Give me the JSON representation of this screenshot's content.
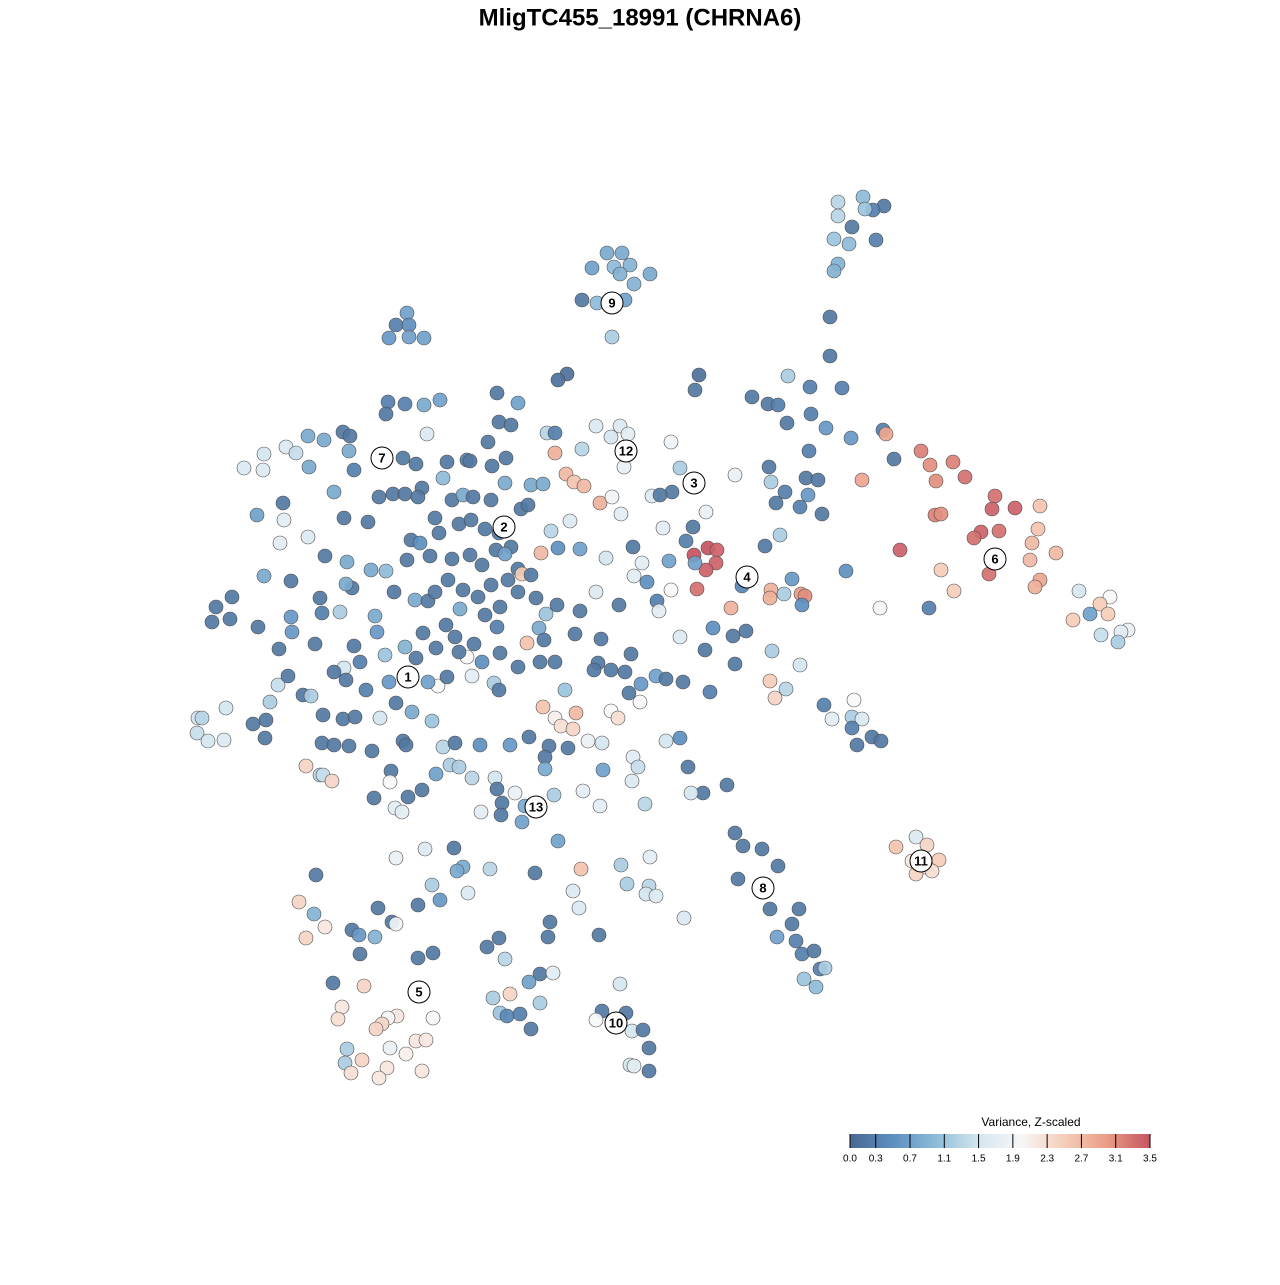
{
  "chart_data": {
    "type": "scatter",
    "title": "MligTC455_18991 (CHRNA6)",
    "xlim": [
      0,
      1280
    ],
    "ylim": [
      1280,
      0
    ],
    "x": [
      607,
      622,
      614,
      630,
      592,
      650,
      620,
      634,
      582,
      597,
      612,
      625,
      612,
      863,
      838,
      884,
      873,
      865,
      838,
      852,
      834,
      849,
      876,
      838,
      834,
      830,
      830,
      407,
      396,
      409,
      389,
      409,
      424,
      567,
      558,
      699,
      695,
      788,
      810,
      842,
      752,
      768,
      778,
      811,
      787,
      826,
      851,
      883,
      886,
      809,
      894,
      921,
      930,
      953,
      965,
      936,
      862,
      995,
      1015,
      1040,
      992,
      935,
      941,
      981,
      999,
      974,
      1038,
      1032,
      1056,
      900,
      1030,
      989,
      941,
      1040,
      1035,
      954,
      1079,
      1110,
      1100,
      1108,
      1073,
      1090,
      1128,
      1121,
      1101,
      1118,
      880,
      929,
      694,
      708,
      717,
      716,
      706,
      697,
      695,
      771,
      770,
      784,
      801,
      805,
      792,
      802,
      731,
      742,
      765,
      780,
      769,
      771,
      785,
      806,
      818,
      808,
      822,
      800,
      776,
      846,
      733,
      746,
      772,
      800,
      735,
      710,
      770,
      786,
      775,
      824,
      854,
      832,
      852,
      862,
      852,
      872,
      857,
      881,
      735,
      743,
      762,
      778,
      738,
      770,
      799,
      792,
      777,
      796,
      802,
      814,
      820,
      825,
      804,
      816,
      727,
      703,
      691,
      688,
      896,
      916,
      927,
      912,
      939,
      925,
      916,
      932,
      596,
      620,
      611,
      628,
      582,
      547,
      555,
      555,
      566,
      574,
      584,
      624,
      600,
      612,
      621,
      671,
      680,
      672,
      652,
      660,
      706,
      735,
      663,
      693,
      686,
      570,
      551,
      541,
      558,
      580,
      606,
      633,
      642,
      634,
      647,
      669,
      671,
      657,
      659,
      680,
      713,
      705,
      264,
      244,
      263,
      286,
      308,
      324,
      343,
      350,
      349,
      296,
      309,
      354,
      334,
      283,
      257,
      284,
      280,
      308,
      344,
      368,
      325,
      347,
      371,
      386,
      352,
      346,
      264,
      291,
      216,
      232,
      212,
      230,
      258,
      291,
      322,
      320,
      340,
      375,
      377,
      354,
      279,
      292,
      315,
      344,
      334,
      360,
      385,
      405,
      423,
      278,
      288,
      303,
      311,
      270,
      198,
      202,
      197,
      208,
      224,
      226,
      253,
      265,
      266,
      323,
      343,
      355,
      380,
      396,
      412,
      432,
      346,
      366,
      389,
      406,
      438,
      428,
      447,
      472,
      494,
      499,
      467,
      459,
      482,
      500,
      518,
      540,
      555,
      565,
      543,
      555,
      561,
      573,
      576,
      588,
      602,
      611,
      618,
      640,
      629,
      641,
      656,
      666,
      683,
      322,
      334,
      349,
      372,
      403,
      406,
      443,
      455,
      480,
      510,
      529,
      549,
      545,
      545,
      568,
      603,
      633,
      638,
      632,
      645,
      666,
      680,
      306,
      320,
      323,
      332,
      391,
      390,
      374,
      395,
      402,
      408,
      422,
      436,
      450,
      459,
      472,
      495,
      497,
      502,
      515,
      525,
      481,
      501,
      522,
      554,
      583,
      600,
      388,
      405,
      424,
      440,
      386,
      497,
      518,
      499,
      511,
      488,
      427,
      403,
      416,
      443,
      447,
      467,
      470,
      492,
      506,
      379,
      393,
      405,
      422,
      418,
      452,
      463,
      473,
      491,
      505,
      531,
      543,
      521,
      528,
      435,
      459,
      471,
      485,
      499,
      511,
      518,
      522,
      531,
      411,
      420,
      439,
      452,
      470,
      482,
      496,
      505,
      430,
      407,
      394,
      415,
      428,
      435,
      448,
      463,
      478,
      491,
      508,
      518,
      536,
      546,
      557,
      580,
      596,
      619,
      500,
      485,
      460,
      446,
      436,
      416,
      455,
      474,
      497,
      527,
      539,
      544,
      575,
      601,
      598,
      611,
      631,
      625,
      594,
      558,
      454,
      425,
      396,
      463,
      457,
      490,
      535,
      581,
      621,
      650,
      316,
      432,
      468,
      440,
      418,
      573,
      627,
      649,
      646,
      656,
      579,
      684,
      299,
      314,
      378,
      392,
      396,
      325,
      352,
      359,
      375,
      306,
      550,
      548,
      599,
      499,
      487,
      433,
      418,
      360,
      505,
      540,
      553,
      529,
      333,
      364,
      620,
      493,
      510,
      540,
      500,
      507,
      520,
      531,
      602,
      626,
      596,
      632,
      643,
      649,
      630,
      634,
      649,
      342,
      338,
      397,
      388,
      382,
      376,
      433,
      416,
      426,
      406,
      390,
      347,
      362,
      345,
      387,
      351,
      379,
      422
    ],
    "y": [
      253,
      253,
      267,
      265,
      268,
      274,
      274,
      284,
      300,
      303,
      302,
      300,
      337,
      197,
      202,
      206,
      210,
      209,
      216,
      227,
      239,
      244,
      240,
      264,
      271,
      317,
      356,
      313,
      325,
      325,
      338,
      337,
      338,
      374,
      380,
      375,
      390,
      376,
      387,
      388,
      397,
      404,
      405,
      414,
      423,
      428,
      438,
      430,
      434,
      451,
      459,
      451,
      465,
      462,
      477,
      481,
      480,
      496,
      508,
      506,
      509,
      515,
      514,
      532,
      531,
      538,
      529,
      543,
      553,
      550,
      560,
      574,
      570,
      580,
      587,
      591,
      591,
      597,
      604,
      614,
      620,
      614,
      630,
      632,
      635,
      642,
      608,
      608,
      555,
      548,
      550,
      563,
      570,
      589,
      563,
      590,
      598,
      594,
      594,
      596,
      579,
      605,
      608,
      586,
      546,
      535,
      467,
      482,
      492,
      478,
      480,
      495,
      514,
      507,
      503,
      571,
      636,
      631,
      651,
      665,
      664,
      692,
      681,
      689,
      698,
      705,
      700,
      719,
      717,
      719,
      728,
      737,
      745,
      741,
      833,
      846,
      849,
      866,
      879,
      909,
      909,
      924,
      937,
      941,
      954,
      951,
      969,
      968,
      979,
      987,
      785,
      793,
      793,
      767,
      847,
      837,
      845,
      861,
      860,
      867,
      874,
      871,
      426,
      426,
      437,
      434,
      449,
      433,
      433,
      453,
      474,
      482,
      486,
      467,
      503,
      497,
      514,
      442,
      468,
      492,
      496,
      495,
      512,
      475,
      528,
      527,
      541,
      521,
      531,
      553,
      548,
      549,
      558,
      547,
      563,
      576,
      582,
      561,
      590,
      601,
      611,
      637,
      628,
      650,
      454,
      468,
      470,
      447,
      436,
      440,
      432,
      436,
      451,
      453,
      467,
      470,
      492,
      503,
      515,
      520,
      543,
      537,
      518,
      522,
      556,
      562,
      570,
      571,
      588,
      584,
      576,
      581,
      607,
      597,
      622,
      619,
      627,
      617,
      613,
      598,
      612,
      616,
      632,
      646,
      649,
      632,
      644,
      668,
      672,
      662,
      655,
      647,
      633,
      685,
      676,
      695,
      696,
      702,
      718,
      718,
      733,
      741,
      740,
      708,
      724,
      738,
      720,
      715,
      719,
      717,
      718,
      703,
      712,
      721,
      680,
      690,
      682,
      680,
      686,
      682,
      677,
      676,
      683,
      690,
      657,
      652,
      662,
      653,
      667,
      662,
      662,
      690,
      707,
      718,
      726,
      729,
      713,
      741,
      743,
      711,
      718,
      702,
      693,
      684,
      676,
      679,
      682,
      743,
      745,
      746,
      751,
      741,
      745,
      747,
      743,
      745,
      745,
      737,
      746,
      757,
      769,
      748,
      770,
      757,
      767,
      781,
      804,
      741,
      738,
      766,
      775,
      775,
      781,
      771,
      782,
      798,
      808,
      812,
      797,
      790,
      774,
      765,
      767,
      778,
      778,
      789,
      803,
      793,
      806,
      812,
      815,
      822,
      795,
      791,
      806,
      402,
      404,
      405,
      400,
      414,
      393,
      403,
      422,
      425,
      442,
      434,
      458,
      464,
      478,
      462,
      460,
      461,
      466,
      458,
      497,
      494,
      494,
      488,
      497,
      500,
      495,
      497,
      500,
      483,
      485,
      484,
      509,
      505,
      518,
      524,
      520,
      529,
      533,
      547,
      569,
      574,
      575,
      540,
      543,
      533,
      559,
      555,
      565,
      550,
      554,
      556,
      560,
      592,
      600,
      601,
      592,
      580,
      590,
      597,
      585,
      580,
      592,
      598,
      614,
      605,
      611,
      592,
      605,
      607,
      615,
      609,
      625,
      648,
      658,
      637,
      644,
      627,
      643,
      628,
      640,
      634,
      639,
      663,
      670,
      654,
      672,
      670,
      841,
      848,
      849,
      858,
      867,
      871,
      869,
      873,
      869,
      865,
      857,
      875,
      885,
      893,
      900,
      905,
      891,
      884,
      886,
      894,
      896,
      908,
      918,
      902,
      914,
      908,
      922,
      924,
      927,
      930,
      935,
      937,
      938,
      922,
      937,
      935,
      938,
      947,
      953,
      958,
      954,
      959,
      974,
      973,
      982,
      983,
      986,
      984,
      998,
      994,
      1003,
      1013,
      1016,
      1014,
      1029,
      1011,
      1013,
      1020,
      1031,
      1030,
      1048,
      1065,
      1066,
      1071,
      1007,
      1019,
      1016,
      1018,
      1024,
      1029,
      1018,
      1041,
      1040,
      1054,
      1048,
      1049,
      1060,
      1063,
      1068,
      1073,
      1078,
      1071
    ],
    "values": [
      0.8,
      0.8,
      1.0,
      0.9,
      0.7,
      0.8,
      0.9,
      0.9,
      0.2,
      1.0,
      0.9,
      0.7,
      1.2,
      1.0,
      1.3,
      0.2,
      0.3,
      1.1,
      1.3,
      0.2,
      1.1,
      1.0,
      0.3,
      0.9,
      0.9,
      0.2,
      0.2,
      0.7,
      0.3,
      0.5,
      0.6,
      0.7,
      0.7,
      0.1,
      0.1,
      0.1,
      0.2,
      1.2,
      0.3,
      0.3,
      0.2,
      0.2,
      0.3,
      0.3,
      0.2,
      0.6,
      0.6,
      0.3,
      2.9,
      0.3,
      0.2,
      3.2,
      3.1,
      3.2,
      3.3,
      3.1,
      2.9,
      3.3,
      3.4,
      2.6,
      3.4,
      3.2,
      3.1,
      3.4,
      3.3,
      3.3,
      2.6,
      2.7,
      2.7,
      3.4,
      2.7,
      3.3,
      2.5,
      2.9,
      2.8,
      2.5,
      1.5,
      2.0,
      2.5,
      2.5,
      2.5,
      0.7,
      1.8,
      1.7,
      1.4,
      1.2,
      1.9,
      0.3,
      3.5,
      3.5,
      3.4,
      3.4,
      3.4,
      3.3,
      0.7,
      2.8,
      2.8,
      1.2,
      3.0,
      3.1,
      0.6,
      0.5,
      2.8,
      0.4,
      0.2,
      1.2,
      0.2,
      1.2,
      0.3,
      0.2,
      0.2,
      0.6,
      0.2,
      0.3,
      0.2,
      0.5,
      0.2,
      0.2,
      1.2,
      1.5,
      0.2,
      0.3,
      2.5,
      1.3,
      2.4,
      0.3,
      2.0,
      1.7,
      1.2,
      1.6,
      0.3,
      0.2,
      0.2,
      0.2,
      0.2,
      0.2,
      0.2,
      0.2,
      0.2,
      0.2,
      0.2,
      0.2,
      0.7,
      0.3,
      0.3,
      0.2,
      0.3,
      1.2,
      1.1,
      1.0,
      0.2,
      0.2,
      1.5,
      0.2,
      2.6,
      1.6,
      2.4,
      2.2,
      2.5,
      1.9,
      2.4,
      2.3,
      1.6,
      1.6,
      1.5,
      1.7,
      1.3,
      1.3,
      0.3,
      2.8,
      2.7,
      2.6,
      2.7,
      1.8,
      2.8,
      1.9,
      1.7,
      1.9,
      1.2,
      0.2,
      1.6,
      0.2,
      1.8,
      1.8,
      1.7,
      0.2,
      0.3,
      1.6,
      1.3,
      2.7,
      0.5,
      0.7,
      1.5,
      0.2,
      1.7,
      1.7,
      0.5,
      0.7,
      2.0,
      0.3,
      1.7,
      1.6,
      0.5,
      0.2,
      1.5,
      1.6,
      1.6,
      1.6,
      0.8,
      0.8,
      0.2,
      0.2,
      0.8,
      1.4,
      0.8,
      0.3,
      0.8,
      0.2,
      0.7,
      1.7,
      1.7,
      1.6,
      0.2,
      0.2,
      0.2,
      0.8,
      0.8,
      1.0,
      0.2,
      0.8,
      0.8,
      0.2,
      0.2,
      0.2,
      0.2,
      0.2,
      0.2,
      0.6,
      0.3,
      0.2,
      1.2,
      0.8,
      0.6,
      0.2,
      0.2,
      0.6,
      0.2,
      1.5,
      0.2,
      0.3,
      1.1,
      0.9,
      0.2,
      1.4,
      0.2,
      0.2,
      1.2,
      1.2,
      1.5,
      1.3,
      1.4,
      1.5,
      1.6,
      1.5,
      0.2,
      0.2,
      0.2,
      0.2,
      0.2,
      0.2,
      1.5,
      0.2,
      0.8,
      1.1,
      0.2,
      0.3,
      0.6,
      1.5,
      2.0,
      0.7,
      0.2,
      1.7,
      1.2,
      0.2,
      2.0,
      0.2,
      0.5,
      0.2,
      0.2,
      0.2,
      0.2,
      1.1,
      2.6,
      2.1,
      2.3,
      2.4,
      2.7,
      1.8,
      1.5,
      2.0,
      2.3,
      2.0,
      0.2,
      0.6,
      0.7,
      0.2,
      0.2,
      0.2,
      0.2,
      0.2,
      0.2,
      0.2,
      0.2,
      1.3,
      0.2,
      0.5,
      0.6,
      0.2,
      0.2,
      0.2,
      0.8,
      0.2,
      0.7,
      1.7,
      1.4,
      1.6,
      1.3,
      1.5,
      0.5,
      2.4,
      1.3,
      1.4,
      2.4,
      0.2,
      2.0,
      0.2,
      1.7,
      1.7,
      0.2,
      0.2,
      0.7,
      1.2,
      1.2,
      1.3,
      1.5,
      0.2,
      0.2,
      1.8,
      0.8,
      1.7,
      0.2,
      0.7,
      1.2,
      1.7,
      1.7,
      0.3,
      0.3,
      0.8,
      0.7,
      0.2,
      0.2,
      0.7,
      0.2,
      0.2,
      0.2,
      1.6,
      0.2,
      0.2,
      1.0,
      0.2,
      0.3,
      0.2,
      0.2,
      0.2,
      0.2,
      0.2,
      0.2,
      0.2,
      0.2,
      0.2,
      0.8,
      0.2,
      0.2,
      0.8,
      0.8,
      0.8,
      0.2,
      0.2,
      0.2,
      0.2,
      0.2,
      0.2,
      0.2,
      0.2,
      0.2,
      2.5,
      0.2,
      0.2,
      0.5,
      0.2,
      0.2,
      0.2,
      0.2,
      0.2,
      0.7,
      0.2,
      0.2,
      0.2,
      0.8,
      0.2,
      0.2,
      0.2,
      0.2,
      0.2,
      0.2,
      0.2,
      0.2,
      0.2,
      1.1,
      0.2,
      0.2,
      1.6,
      0.2,
      0.2,
      0.2,
      0.8,
      0.2,
      0.2,
      0.2,
      0.2,
      0.2,
      0.3,
      2.6,
      0.8,
      0.2,
      0.2,
      0.2,
      0.2,
      0.2,
      0.2,
      0.2,
      0.2,
      0.7,
      0.2,
      1.6,
      1.8,
      0.8,
      0.8,
      1.3,
      0.2,
      2.6,
      1.2,
      1.7,
      0.2,
      1.2,
      1.6,
      0.6,
      0.2,
      1.6,
      1.2,
      1.3,
      1.5,
      1.6,
      1.6,
      1.6,
      2.4,
      0.9,
      0.2,
      0.2,
      1.9,
      2.2,
      0.2,
      0.6,
      0.9,
      2.4,
      0.2,
      0.2,
      0.2,
      0.2,
      0.2,
      0.2,
      0.2,
      0.2,
      1.3,
      0.2,
      1.7,
      0.7,
      0.2,
      2.4,
      1.5,
      1.2,
      2.4,
      1.2,
      1.1,
      0.4,
      0.3,
      0.2,
      0.2,
      0.2,
      2.0,
      1.5,
      0.2,
      0.2,
      1.5,
      1.7,
      0.2,
      2.2,
      2.3,
      2.2,
      2.0,
      2.4,
      2.4,
      2.0,
      2.2,
      2.2,
      2.1,
      1.8,
      1.2,
      2.4,
      1.2,
      2.2,
      2.3,
      2.2,
      2.2
    ],
    "annotations": [
      {
        "text": "1",
        "x": 408,
        "y": 677
      },
      {
        "text": "2",
        "x": 504,
        "y": 527
      },
      {
        "text": "3",
        "x": 694,
        "y": 483
      },
      {
        "text": "4",
        "x": 747,
        "y": 577
      },
      {
        "text": "5",
        "x": 419,
        "y": 992
      },
      {
        "text": "6",
        "x": 995,
        "y": 559
      },
      {
        "text": "7",
        "x": 382,
        "y": 458
      },
      {
        "text": "8",
        "x": 763,
        "y": 888
      },
      {
        "text": "9",
        "x": 612,
        "y": 303
      },
      {
        "text": "10",
        "x": 616,
        "y": 1023
      },
      {
        "text": "11",
        "x": 921,
        "y": 861
      },
      {
        "text": "12",
        "x": 626,
        "y": 451
      },
      {
        "text": "13",
        "x": 536,
        "y": 807
      }
    ],
    "colorbar": {
      "title": "Variance, Z-scaled",
      "clim": [
        0,
        3.5
      ],
      "colors": [
        "#4a6890",
        "#5d8fc0",
        "#8dbbd8",
        "#d5e6f0",
        "#f7f7f7",
        "#f5cdb9",
        "#e99c85",
        "#c65362"
      ],
      "ticks": [
        {
          "value": 0,
          "label": "0.0"
        },
        0.3,
        0.7,
        1.1,
        1.5,
        1.9,
        2.3,
        2.7,
        3.1,
        3.5
      ]
    }
  }
}
